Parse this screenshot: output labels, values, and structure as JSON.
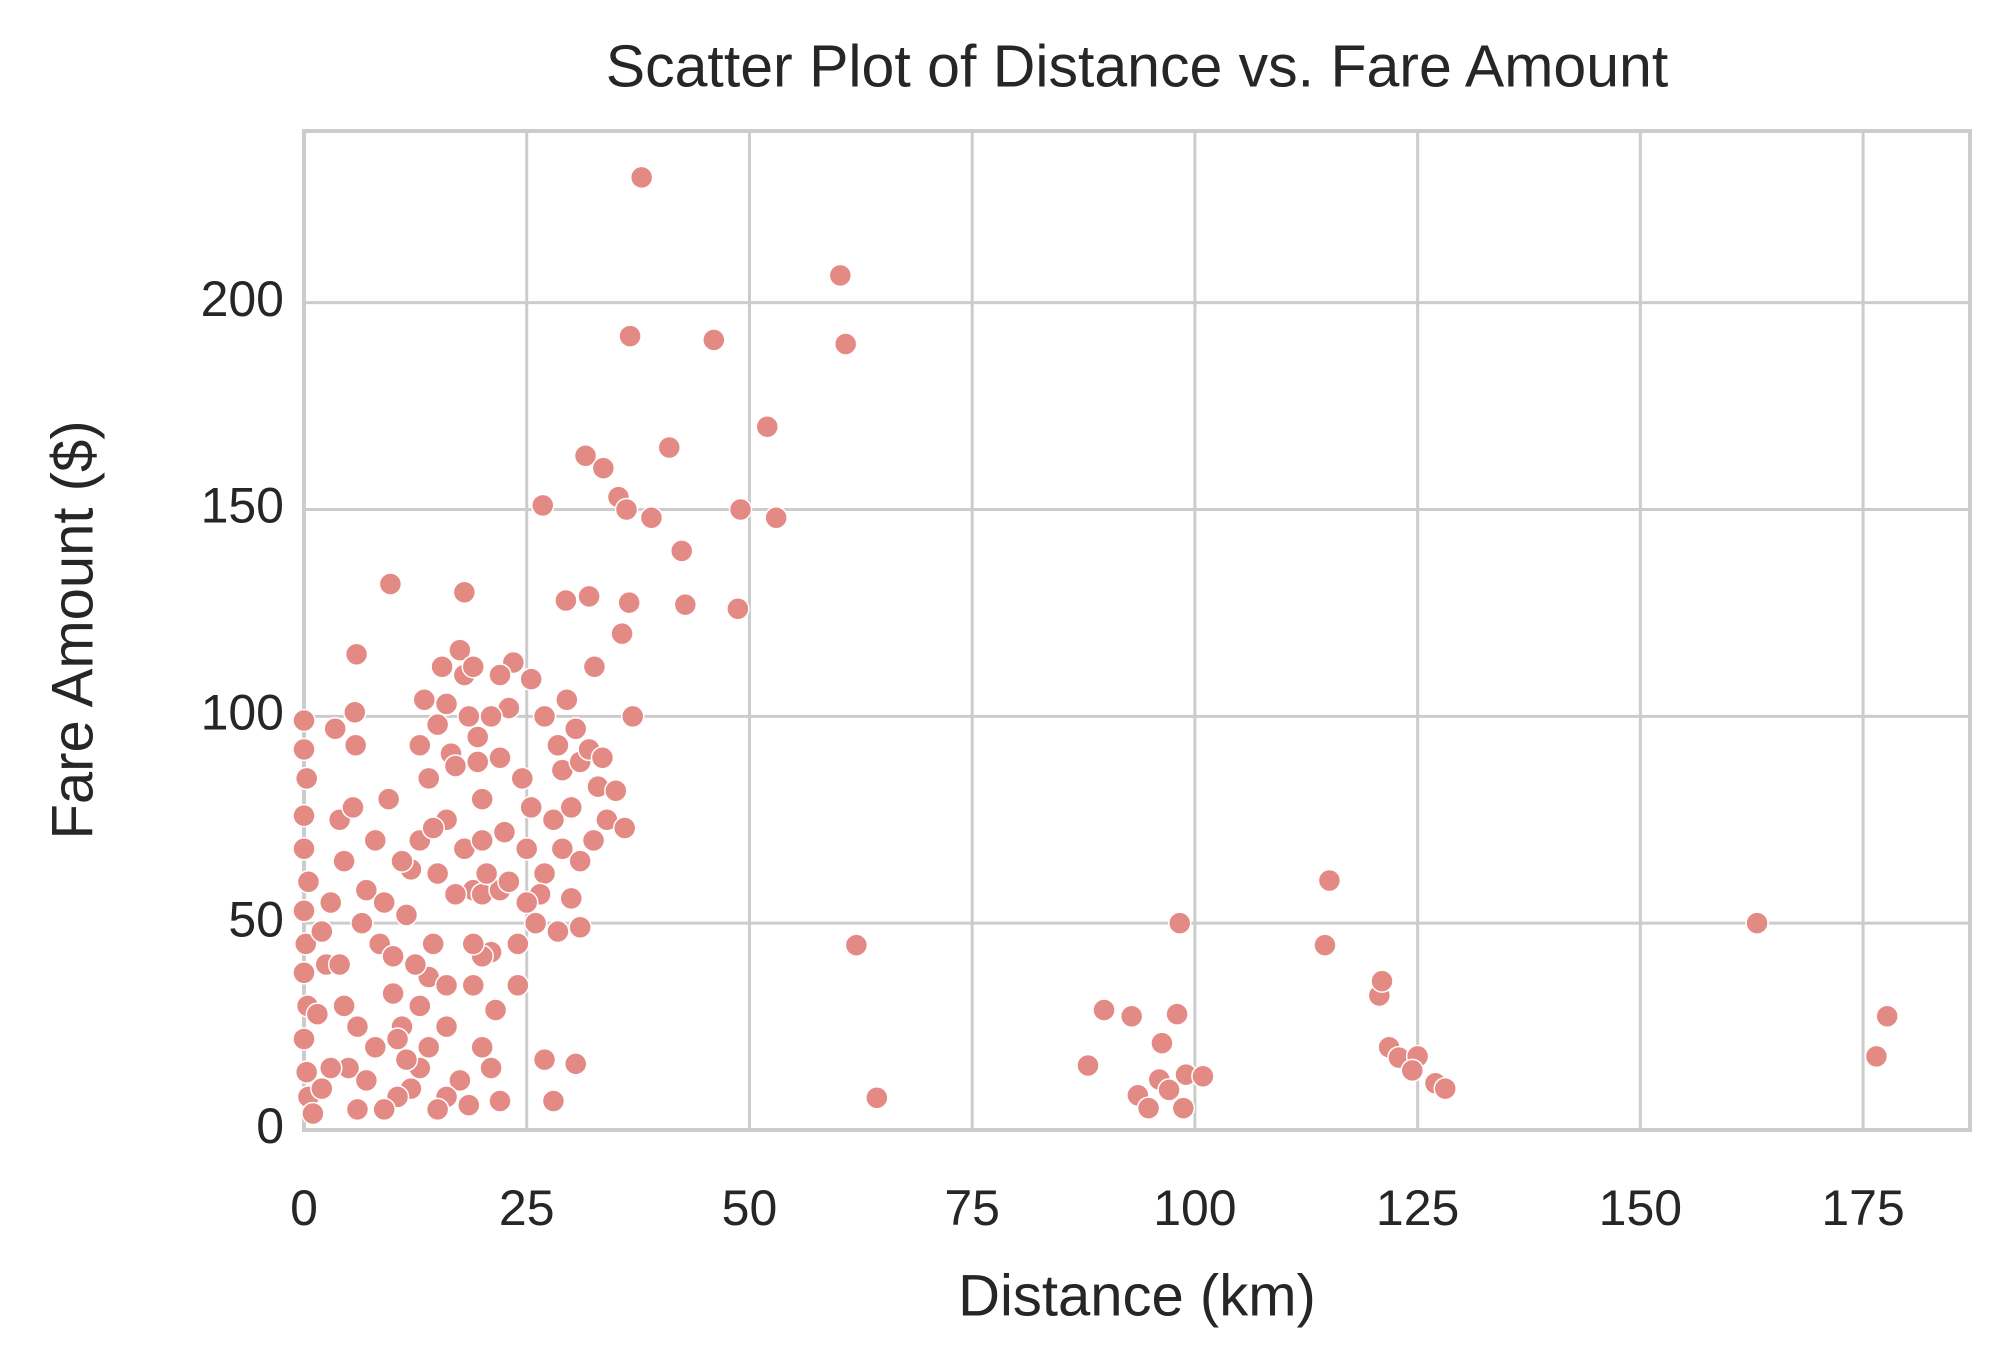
{
  "chart_data": {
    "type": "scatter",
    "title": "Scatter Plot of Distance vs. Fare Amount",
    "x_label": "Distance (km)",
    "y_label": "Fare Amount ($)",
    "color": "#e48a85",
    "grid": true,
    "xlim": [
      0,
      187
    ],
    "xticks": [
      0,
      25,
      50,
      75,
      100,
      125,
      150,
      175
    ],
    "ylim": [
      0,
      241.5
    ],
    "yticks": [
      0,
      50,
      100,
      150,
      200
    ],
    "x": [
      37.9,
      60.2,
      36.6,
      46,
      60.8,
      52,
      41,
      31.6,
      33.6,
      26.8,
      35.3,
      36.2,
      39,
      49,
      53,
      42.4,
      9.7,
      18,
      42.8,
      48.7,
      29.4,
      32,
      36.5,
      35.7,
      32.6,
      36.9,
      5.9,
      62,
      64.3,
      88,
      89.8,
      92.9,
      93.6,
      94.8,
      96,
      96.3,
      98,
      98.3,
      97.1,
      99,
      100.9,
      98.7,
      114.6,
      115.1,
      120.7,
      121,
      121.8,
      122.9,
      125,
      124.4,
      127,
      128.1,
      163.1,
      176.5,
      177.7,
      0,
      0,
      0.3,
      0,
      0,
      0.5,
      0,
      0.2,
      0,
      0.4,
      0,
      0.3,
      0.5,
      1,
      3.5,
      4,
      5.7,
      5.8,
      4.5,
      3,
      2,
      2.5,
      4,
      5.5,
      6.5,
      7,
      6,
      5,
      3,
      2,
      1.5,
      4.5,
      8,
      9.5,
      9,
      8.5,
      10,
      10,
      11,
      12,
      11.5,
      13,
      12,
      10.5,
      14,
      13,
      13.5,
      14,
      15,
      15.5,
      16,
      16.5,
      17,
      17.5,
      18,
      18.5,
      19,
      19.5,
      19.5,
      20,
      18,
      19,
      20,
      21,
      17,
      15,
      14.5,
      16,
      17.5,
      16,
      15,
      13,
      18.5,
      20,
      21,
      22,
      21.5,
      22,
      22.5,
      22,
      23,
      23.5,
      24.5,
      25.5,
      25,
      25.5,
      26,
      24,
      24,
      27,
      27,
      28,
      28.5,
      29,
      29.5,
      29,
      30,
      30.5,
      31,
      31,
      31,
      30,
      28.5,
      27,
      28,
      30.5,
      32,
      33,
      34,
      35,
      36,
      33.5,
      32.5,
      26.5,
      20,
      9,
      6,
      7,
      8,
      10.5,
      11.5,
      14,
      19,
      12.5,
      23,
      25,
      16,
      13,
      11,
      21,
      22,
      16,
      14.5,
      19,
      20,
      20.5
    ],
    "values": [
      230.3,
      206.6,
      191.9,
      191,
      190,
      170,
      165,
      163,
      160,
      151,
      153,
      150,
      148,
      150,
      148,
      140,
      132,
      130,
      127,
      126,
      128,
      129,
      127.5,
      120,
      112,
      100,
      115,
      44.7,
      7.8,
      15.6,
      29,
      27.5,
      8.4,
      5.3,
      12.2,
      21,
      28,
      50,
      9.7,
      13.4,
      13,
      5.3,
      44.7,
      60.3,
      32.5,
      36,
      20,
      17.5,
      17.8,
      14.4,
      11.3,
      10,
      50,
      17.8,
      27.5,
      99,
      92,
      85,
      76,
      68,
      60,
      53,
      45,
      38,
      30,
      22,
      14,
      8,
      4,
      97,
      75,
      101,
      93,
      65,
      55,
      48,
      40,
      40,
      78,
      50,
      58,
      25,
      15,
      15,
      10,
      28,
      30,
      70,
      80,
      55,
      45,
      42,
      33,
      25,
      63,
      52,
      30,
      10,
      8,
      37,
      93,
      104,
      85,
      98,
      112,
      75,
      91,
      88,
      116,
      110,
      100,
      112,
      89,
      95,
      80,
      68,
      58,
      57,
      43,
      57,
      62,
      45,
      25,
      12,
      8,
      5,
      15,
      6,
      20,
      15,
      7,
      29,
      58,
      72,
      90,
      102,
      113,
      85,
      109,
      68,
      78,
      50,
      45,
      35,
      100,
      62,
      75,
      93,
      87,
      104,
      68,
      78,
      97,
      89,
      65,
      49,
      56,
      48,
      17,
      7,
      16,
      92,
      83,
      75,
      82,
      73,
      90,
      70,
      57,
      42,
      5,
      5,
      12,
      20,
      22,
      17,
      20,
      35,
      40,
      60,
      55,
      35,
      70,
      65,
      100,
      110,
      103,
      73,
      45,
      70,
      62
    ]
  }
}
